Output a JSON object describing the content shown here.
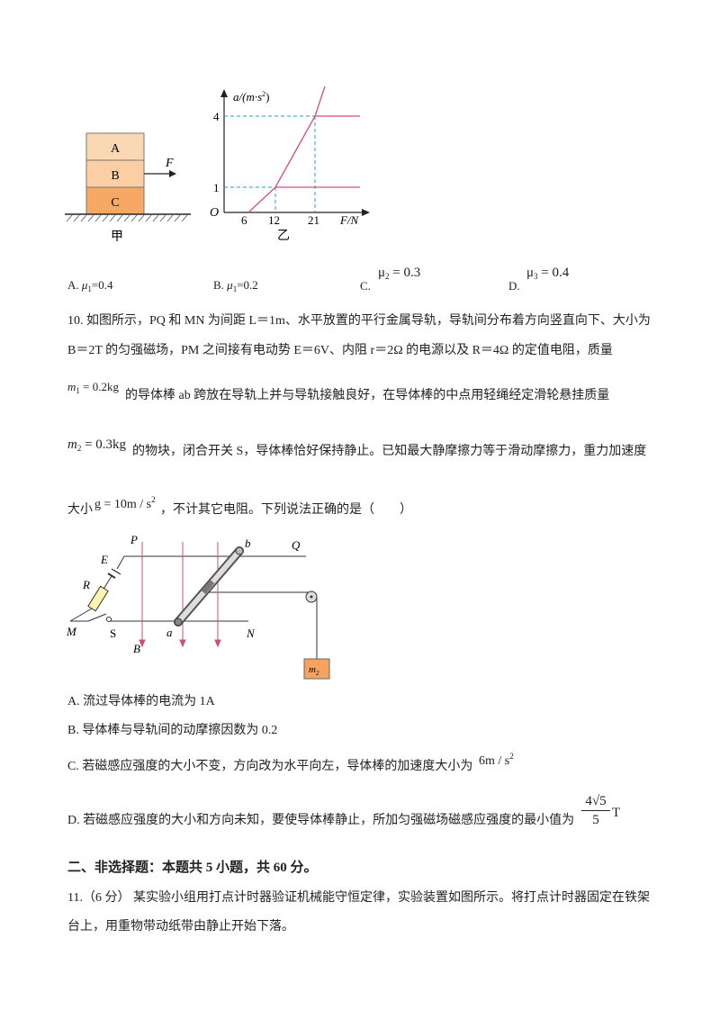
{
  "fig_jia": {
    "blocks": [
      "A",
      "B",
      "C"
    ],
    "force_label": "F",
    "caption": "甲"
  },
  "fig_yi": {
    "y_axis_label": "a/(m·s",
    "y_axis_exp": "2",
    "y_axis_close": ")",
    "x_axis_label": "F/N",
    "origin": "O",
    "y_ticks": [
      "4",
      "1"
    ],
    "x_ticks": [
      "6",
      "12",
      "21"
    ],
    "caption": "乙"
  },
  "q9_options": {
    "a": "A.",
    "a_mu": "μ",
    "a_sub": "1",
    "a_val": "=0.4",
    "b": "B.",
    "b_mu": "μ",
    "b_sub": "1",
    "b_val": "=0.2",
    "c": "C.",
    "c_mu": "μ",
    "c_sub": "2",
    "c_val": " = 0.3",
    "d": "D.",
    "d_mu": "μ",
    "d_sub": "3",
    "d_val": " = 0.4"
  },
  "q10": {
    "line1": "10. 如图所示，PQ 和 MN 为间距 L＝1m、水平放置的平行金属导轨，导轨间分布着方向竖直向下、大小为",
    "line2": "B＝2T 的匀强磁场，PM 之间接有电动势 E＝6V、内阻 r＝2Ω 的电源以及 R＝4Ω 的定值电阻，质量",
    "line3_math_m": "m",
    "line3_math_sub": "1",
    "line3_math_val": " = 0.2kg",
    "line3_text": "的导体棒 ab 跨放在导轨上并与导轨接触良好，在导体棒的中点用轻绳经定滑轮悬挂质量",
    "line4_math_m": "m",
    "line4_math_sub": "2",
    "line4_math_val": " = 0.3kg",
    "line4_text": "的物块，闭合开关 S，导体棒恰好保持静止。已知最大静摩擦力等于滑动摩擦力，重力加速度",
    "line5_pre": "大小",
    "line5_math": "g = 10m / s",
    "line5_exp": "2",
    "line5_text": "，不计其它电阻。下列说法正确的是（　　）"
  },
  "fig_circuit": {
    "P": "P",
    "Q": "Q",
    "M": "M",
    "N": "N",
    "E": "E",
    "R": "R",
    "S": "S",
    "B": "B",
    "a": "a",
    "b": "b",
    "mass_m": "m",
    "mass_sub": "2"
  },
  "q10_options": {
    "a": "A.  流过导体棒的电流为 1A",
    "b": "B.  导体棒与导轨间的动摩擦因数为 0.2",
    "c": "C.  若磁感应强度的大小不变，方向改为水平向左，导体棒的加速度大小为",
    "c_math": "6m / s",
    "c_exp": "2",
    "d": "D.  若磁感应强度的大小和方向未知，要使导体棒静止，所加匀强磁场磁感应强度的最小值为",
    "d_num": "4√5",
    "d_den": "5",
    "d_unit": "T"
  },
  "section2": {
    "heading": "二、非选择题：本题共 5 小题，共 60 分。",
    "q11_line1": "11.（6 分）  某实验小组用打点计时器验证机械能守恒定律，实验装置如图所示。将打点计时器固定在铁架",
    "q11_line2": "台上，用重物带动纸带由静止开始下落。"
  },
  "colors": {
    "block_top": "#fbd8b4",
    "block_mid": "#fbcfa3",
    "block_bottom": "#f5a964",
    "curve": "#d0507a",
    "dashed": "#1aa0d8",
    "mass_box": "#f4a460"
  }
}
